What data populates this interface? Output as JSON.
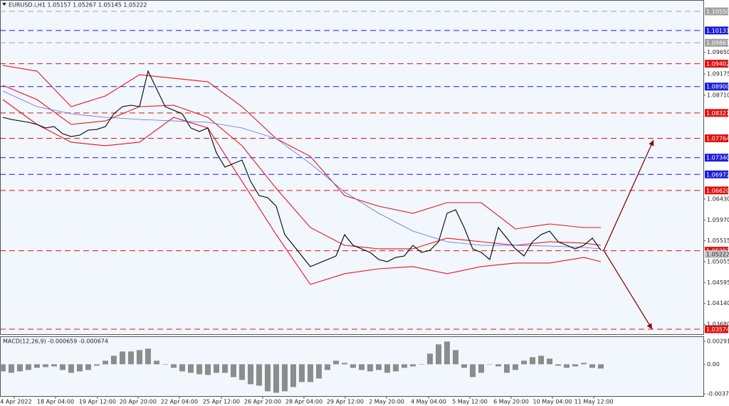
{
  "chart_data": [
    {
      "type": "line",
      "title": "EURUSD.i,H1  1.05157 1.05267 1.05145 1.05222",
      "color": "#000000",
      "values": [
        1.08225,
        1.08178,
        1.08147,
        1.08116,
        1.08069,
        1.07991,
        1.08022,
        1.07866,
        1.07803,
        1.07835,
        1.07944,
        1.07959,
        1.08022,
        1.08303,
        1.08459,
        1.0849,
        1.08459,
        1.09239,
        1.08849,
        1.08459,
        1.08381,
        1.08303,
        1.07991,
        1.07913,
        1.07991,
        1.07445,
        1.07132,
        1.0721,
        1.07288,
        1.0682,
        1.06508,
        1.06461,
        1.06274,
        1.0565,
        1.05416,
        1.05182,
        1.04948,
        1.05026,
        1.05104,
        1.05182,
        1.0565,
        1.05416,
        1.05338,
        1.0526,
        1.05104,
        1.05057,
        1.0515,
        1.05182,
        1.05416,
        1.0526,
        1.05307,
        1.05494,
        1.06118,
        1.06196,
        1.05806,
        1.05338,
        1.0526,
        1.05104,
        1.05806,
        1.05572,
        1.05338,
        1.05182,
        1.05494,
        1.0565,
        1.05728,
        1.05494,
        1.05416,
        1.05338,
        1.05416,
        1.05572,
        1.05307
      ],
      "ylim": [
        1.03465,
        1.108
      ],
      "yticks": [
        {
          "value": 1.0965,
          "label": "1.09650"
        },
        {
          "value": 1.09175,
          "label": "1.09175"
        },
        {
          "value": 1.0871,
          "label": "1.08710"
        },
        {
          "value": 1.0643,
          "label": "1.06430"
        },
        {
          "value": 1.0597,
          "label": "1.05970"
        },
        {
          "value": 1.05515,
          "label": "1.05515"
        },
        {
          "value": 1.05055,
          "label": "1.05055"
        },
        {
          "value": 1.04595,
          "label": "1.04595"
        },
        {
          "value": 1.0414,
          "label": "1.04140"
        },
        {
          "value": 1.0368,
          "label": "1.03680"
        }
      ],
      "current": {
        "value": 1.05222,
        "label": "1.05222"
      },
      "levels": [
        {
          "value": 1.1055,
          "label": "1.10550",
          "color": "#a0a0a0"
        },
        {
          "value": 1.10131,
          "label": "1.10131",
          "color": "#1c1cd8"
        },
        {
          "value": 1.09861,
          "label": "1.09861",
          "color": "#a0a0a0"
        },
        {
          "value": 1.09402,
          "label": "1.09402",
          "color": "#e01010"
        },
        {
          "value": 1.089,
          "label": "1.08900",
          "color": "#1c1cd8"
        },
        {
          "value": 1.08321,
          "label": "1.08321",
          "color": "#e01010"
        },
        {
          "value": 1.07764,
          "label": "1.07764",
          "color": "#e01010"
        },
        {
          "value": 1.0734,
          "label": "1.07340",
          "color": "#1c1cd8"
        },
        {
          "value": 1.06972,
          "label": "1.06972",
          "color": "#1c1cd8"
        },
        {
          "value": 1.0662,
          "label": "1.06620",
          "color": "#e01010"
        },
        {
          "value": 1.05297,
          "label": "1.05297",
          "color": "#e01010"
        },
        {
          "value": 1.03574,
          "label": "1.03574",
          "color": "#e01010"
        }
      ],
      "xlim": [
        -0.33,
        82
      ],
      "xticks": [
        {
          "value": 1.33,
          "label": "14 Apr 2022"
        },
        {
          "value": 6.17,
          "label": "18 Apr 04:00"
        },
        {
          "value": 11.08,
          "label": "19 Apr 12:00"
        },
        {
          "value": 15.83,
          "label": "20 Apr 20:00"
        },
        {
          "value": 20.67,
          "label": "22 Apr 04:00"
        },
        {
          "value": 25.58,
          "label": "25 Apr 12:00"
        },
        {
          "value": 30.42,
          "label": "26 Apr 20:00"
        },
        {
          "value": 35.25,
          "label": "28 Apr 04:00"
        },
        {
          "value": 40.08,
          "label": "29 Apr 12:00"
        },
        {
          "value": 44.92,
          "label": "2 May 20:00"
        },
        {
          "value": 49.83,
          "label": "4 May 04:00"
        },
        {
          "value": 54.67,
          "label": "5 May 12:00"
        },
        {
          "value": 59.5,
          "label": "6 May 20:00"
        },
        {
          "value": 64.33,
          "label": "10 May 04:00"
        },
        {
          "value": 69.17,
          "label": "11 May 12:00"
        }
      ],
      "overlay_x": [
        0,
        4,
        8,
        12,
        16,
        20,
        24,
        28,
        32,
        36,
        40,
        44,
        48,
        52,
        56,
        60,
        64,
        68,
        70
      ],
      "overlays": [
        {
          "color": "#e8141b",
          "values": [
            1.09364,
            1.09239,
            1.08459,
            1.08693,
            1.09161,
            1.09083,
            1.09005,
            1.08459,
            1.07757,
            1.07366,
            1.06508,
            1.06274,
            1.06118,
            1.06352,
            1.06352,
            1.05775,
            1.05884,
            1.05806,
            1.05806
          ]
        },
        {
          "color": "#e8141b",
          "values": [
            1.08927,
            1.08615,
            1.08069,
            1.08147,
            1.08459,
            1.0849,
            1.08225,
            1.07601,
            1.06664,
            1.05806,
            1.05416,
            1.05338,
            1.05338,
            1.05572,
            1.05494,
            1.05416,
            1.05494,
            1.05463,
            1.05416
          ]
        },
        {
          "color": "#e8141b",
          "values": [
            1.08615,
            1.08069,
            1.07679,
            1.07601,
            1.07679,
            1.08225,
            1.07991,
            1.0682,
            1.0565,
            1.04557,
            1.04792,
            1.04901,
            1.04948,
            1.04792,
            1.04948,
            1.05026,
            1.05026,
            1.0515,
            1.05057
          ]
        },
        {
          "color": "#5a6ee0",
          "values": [
            1.08802,
            1.08459,
            1.08303,
            1.08225,
            1.08178,
            1.08147,
            1.08116,
            1.07991,
            1.07757,
            1.0721,
            1.06586,
            1.06118,
            1.05728,
            1.05494,
            1.05416,
            1.05416,
            1.054,
            1.05369,
            1.05338
          ]
        }
      ]
    },
    {
      "type": "bar",
      "label": "MACD(12,26,9) -0.000659 -0.000674",
      "color": "#8c8c8c",
      "values": [
        -0.0009,
        -0.00108,
        -0.0009,
        -0.00072,
        -0.00045,
        -0.00036,
        -0.00027,
        -0.00072,
        -0.00108,
        -0.0009,
        -0.00072,
        -0.00018,
        0.00045,
        0.00108,
        0.00162,
        0.00162,
        0.0018,
        0.00198,
        0.00045,
        0,
        -0.00045,
        -0.0009,
        -0.00108,
        -0.00126,
        -0.00135,
        -0.00108,
        -0.00108,
        -0.00162,
        -0.00198,
        -0.00252,
        -0.0027,
        -0.00342,
        -0.0036,
        -0.00342,
        -0.00288,
        -0.00225,
        -0.00225,
        -0.0018,
        -0.00072,
        0.00045,
        0.00018,
        -0.00045,
        -0.00072,
        -0.0009,
        -0.00072,
        -0.00108,
        -0.0009,
        -0.00045,
        -0.00027,
        0,
        0.00135,
        0.00252,
        0.00288,
        0.0018,
        -0.00045,
        -0.00162,
        -0.00108,
        0,
        -0.00027,
        -0.00108,
        -0.00072,
        0.00045,
        0.0009,
        0.00108,
        0.00072,
        -0.00018,
        -0.00045,
        -0.00027,
        0.00018,
        -0.00045,
        -0.00054
      ],
      "ylim": [
        -0.00402,
        0.00354
      ],
      "yticks": [
        0.00291,
        {
          "value": 0,
          "label": "0.00"
        },
        -0.003746
      ]
    }
  ]
}
